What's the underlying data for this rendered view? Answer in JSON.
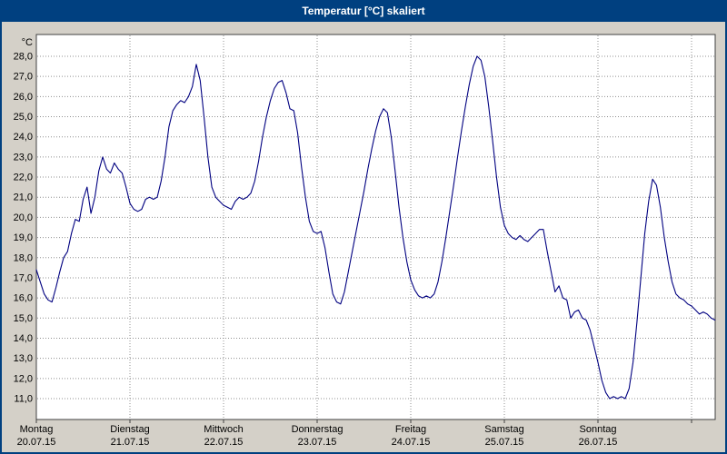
{
  "window": {
    "title": "Temperatur [°C] skaliert"
  },
  "colors": {
    "titlebar_bg": "#004080",
    "titlebar_text": "#ffffff",
    "window_bg": "#d4d0c8",
    "plot_bg": "#ffffff",
    "plot_border": "#404040",
    "grid_color": "#909090",
    "line_color": "#000080",
    "axis_text": "#000000"
  },
  "chart_data": {
    "type": "line",
    "title": "Temperatur [°C] skaliert",
    "ylabel_unit": "°C",
    "ylim": [
      11,
      28
    ],
    "grid": true,
    "legend": false,
    "x_unit": "hours_from_monday_00:00",
    "hours_per_day": 24,
    "y_ticks": [
      {
        "value": 28,
        "label": "28,0"
      },
      {
        "value": 27,
        "label": "27,0"
      },
      {
        "value": 26,
        "label": "26,0"
      },
      {
        "value": 25,
        "label": "25,0"
      },
      {
        "value": 24,
        "label": "24,0"
      },
      {
        "value": 23,
        "label": "23,0"
      },
      {
        "value": 22,
        "label": "22,0"
      },
      {
        "value": 21,
        "label": "21,0"
      },
      {
        "value": 20,
        "label": "20,0"
      },
      {
        "value": 19,
        "label": "19,0"
      },
      {
        "value": 18,
        "label": "18,0"
      },
      {
        "value": 17,
        "label": "17,0"
      },
      {
        "value": 16,
        "label": "16,0"
      },
      {
        "value": 15,
        "label": "15,0"
      },
      {
        "value": 14,
        "label": "14,0"
      },
      {
        "value": 13,
        "label": "13,0"
      },
      {
        "value": 12,
        "label": "12,0"
      },
      {
        "value": 11,
        "label": "11,0"
      }
    ],
    "x_days": [
      {
        "name": "Montag",
        "date": "20.07.15"
      },
      {
        "name": "Dienstag",
        "date": "21.07.15"
      },
      {
        "name": "Mittwoch",
        "date": "22.07.15"
      },
      {
        "name": "Donnerstag",
        "date": "23.07.15"
      },
      {
        "name": "Freitag",
        "date": "24.07.15"
      },
      {
        "name": "Samstag",
        "date": "25.07.15"
      },
      {
        "name": "Sonntag",
        "date": "26.07.15"
      }
    ],
    "series": [
      {
        "name": "Temperatur",
        "points": [
          [
            0,
            17.4
          ],
          [
            1,
            16.8
          ],
          [
            2,
            16.2
          ],
          [
            3,
            15.9
          ],
          [
            4,
            15.8
          ],
          [
            5,
            16.5
          ],
          [
            6,
            17.3
          ],
          [
            7,
            18.0
          ],
          [
            8,
            18.3
          ],
          [
            9,
            19.2
          ],
          [
            10,
            19.9
          ],
          [
            11,
            19.8
          ],
          [
            12,
            20.9
          ],
          [
            13,
            21.5
          ],
          [
            14,
            20.2
          ],
          [
            15,
            21.0
          ],
          [
            16,
            22.3
          ],
          [
            17,
            23.0
          ],
          [
            18,
            22.4
          ],
          [
            19,
            22.2
          ],
          [
            20,
            22.7
          ],
          [
            21,
            22.4
          ],
          [
            22,
            22.2
          ],
          [
            23,
            21.5
          ],
          [
            24,
            20.7
          ],
          [
            25,
            20.4
          ],
          [
            26,
            20.3
          ],
          [
            27,
            20.4
          ],
          [
            28,
            20.9
          ],
          [
            29,
            21.0
          ],
          [
            30,
            20.9
          ],
          [
            31,
            21.0
          ],
          [
            32,
            21.8
          ],
          [
            33,
            23.0
          ],
          [
            34,
            24.5
          ],
          [
            35,
            25.3
          ],
          [
            36,
            25.6
          ],
          [
            37,
            25.8
          ],
          [
            38,
            25.7
          ],
          [
            39,
            26.0
          ],
          [
            40,
            26.5
          ],
          [
            41,
            27.6
          ],
          [
            42,
            26.8
          ],
          [
            43,
            25.0
          ],
          [
            44,
            23.0
          ],
          [
            45,
            21.5
          ],
          [
            46,
            21.0
          ],
          [
            47,
            20.8
          ],
          [
            48,
            20.6
          ],
          [
            49,
            20.5
          ],
          [
            50,
            20.4
          ],
          [
            51,
            20.8
          ],
          [
            52,
            21.0
          ],
          [
            53,
            20.9
          ],
          [
            54,
            21.0
          ],
          [
            55,
            21.2
          ],
          [
            56,
            21.8
          ],
          [
            57,
            22.8
          ],
          [
            58,
            24.0
          ],
          [
            59,
            25.0
          ],
          [
            60,
            25.8
          ],
          [
            61,
            26.4
          ],
          [
            62,
            26.7
          ],
          [
            63,
            26.8
          ],
          [
            64,
            26.2
          ],
          [
            65,
            25.4
          ],
          [
            66,
            25.3
          ],
          [
            67,
            24.2
          ],
          [
            68,
            22.5
          ],
          [
            69,
            21.0
          ],
          [
            70,
            19.8
          ],
          [
            71,
            19.3
          ],
          [
            72,
            19.2
          ],
          [
            73,
            19.3
          ],
          [
            74,
            18.5
          ],
          [
            75,
            17.3
          ],
          [
            76,
            16.2
          ],
          [
            77,
            15.8
          ],
          [
            78,
            15.7
          ],
          [
            79,
            16.3
          ],
          [
            80,
            17.3
          ],
          [
            81,
            18.3
          ],
          [
            82,
            19.3
          ],
          [
            83,
            20.3
          ],
          [
            84,
            21.3
          ],
          [
            85,
            22.4
          ],
          [
            86,
            23.4
          ],
          [
            87,
            24.3
          ],
          [
            88,
            25.0
          ],
          [
            89,
            25.4
          ],
          [
            90,
            25.2
          ],
          [
            91,
            24.0
          ],
          [
            92,
            22.3
          ],
          [
            93,
            20.5
          ],
          [
            94,
            19.0
          ],
          [
            95,
            17.8
          ],
          [
            96,
            16.9
          ],
          [
            97,
            16.4
          ],
          [
            98,
            16.1
          ],
          [
            99,
            16.0
          ],
          [
            100,
            16.1
          ],
          [
            101,
            16.0
          ],
          [
            102,
            16.2
          ],
          [
            103,
            16.8
          ],
          [
            104,
            17.8
          ],
          [
            105,
            19.0
          ],
          [
            106,
            20.3
          ],
          [
            107,
            21.6
          ],
          [
            108,
            23.0
          ],
          [
            109,
            24.3
          ],
          [
            110,
            25.5
          ],
          [
            111,
            26.6
          ],
          [
            112,
            27.5
          ],
          [
            113,
            28.0
          ],
          [
            114,
            27.8
          ],
          [
            115,
            27.0
          ],
          [
            116,
            25.5
          ],
          [
            117,
            23.8
          ],
          [
            118,
            22.0
          ],
          [
            119,
            20.5
          ],
          [
            120,
            19.6
          ],
          [
            121,
            19.2
          ],
          [
            122,
            19.0
          ],
          [
            123,
            18.9
          ],
          [
            124,
            19.1
          ],
          [
            125,
            18.9
          ],
          [
            126,
            18.8
          ],
          [
            127,
            19.0
          ],
          [
            128,
            19.2
          ],
          [
            129,
            19.4
          ],
          [
            130,
            19.4
          ],
          [
            131,
            18.3
          ],
          [
            132,
            17.3
          ],
          [
            133,
            16.3
          ],
          [
            134,
            16.6
          ],
          [
            135,
            16.0
          ],
          [
            136,
            15.9
          ],
          [
            137,
            15.0
          ],
          [
            138,
            15.3
          ],
          [
            139,
            15.4
          ],
          [
            140,
            15.0
          ],
          [
            141,
            14.9
          ],
          [
            142,
            14.4
          ],
          [
            143,
            13.6
          ],
          [
            144,
            12.8
          ],
          [
            145,
            11.9
          ],
          [
            146,
            11.3
          ],
          [
            147,
            11.0
          ],
          [
            148,
            11.1
          ],
          [
            149,
            11.0
          ],
          [
            150,
            11.1
          ],
          [
            151,
            11.0
          ],
          [
            152,
            11.5
          ],
          [
            153,
            12.8
          ],
          [
            154,
            14.8
          ],
          [
            155,
            17.0
          ],
          [
            156,
            19.2
          ],
          [
            157,
            20.8
          ],
          [
            158,
            21.9
          ],
          [
            159,
            21.6
          ],
          [
            160,
            20.5
          ],
          [
            161,
            19.0
          ],
          [
            162,
            17.8
          ],
          [
            163,
            16.8
          ],
          [
            164,
            16.2
          ],
          [
            165,
            16.0
          ],
          [
            166,
            15.9
          ],
          [
            167,
            15.7
          ],
          [
            168,
            15.6
          ],
          [
            169,
            15.4
          ],
          [
            170,
            15.2
          ],
          [
            171,
            15.3
          ],
          [
            172,
            15.2
          ],
          [
            173,
            15.0
          ],
          [
            174,
            14.9
          ]
        ]
      }
    ]
  }
}
